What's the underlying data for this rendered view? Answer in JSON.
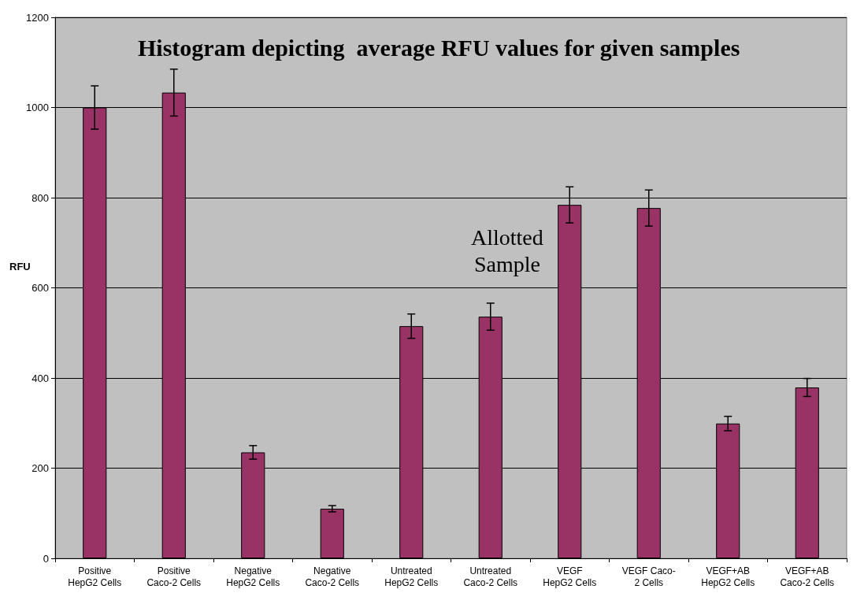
{
  "chart_data": {
    "type": "bar",
    "title": "Histogram depicting  average RFU values for given samples",
    "ylabel": "RFU",
    "categories": [
      "Positive\nHepG2 Cells",
      "Positive\nCaco-2 Cells",
      "Negative\nHepG2 Cells",
      "Negative\nCaco-2 Cells",
      "Untreated\nHepG2 Cells",
      "Untreated\nCaco-2 Cells",
      "VEGF\nHepG2 Cells",
      "VEGF Caco-\n2 Cells",
      "VEGF+AB\nHepG2 Cells",
      "VEGF+AB\nCaco-2 Cells"
    ],
    "values": [
      1000,
      1033,
      235,
      110,
      515,
      536,
      784,
      777,
      299,
      379
    ],
    "errors": [
      48,
      52,
      15,
      7,
      27,
      30,
      40,
      40,
      16,
      20
    ],
    "color": "#993366",
    "ylim": [
      0,
      1200
    ],
    "yticks": [
      0,
      200,
      400,
      600,
      800,
      1000,
      1200
    ],
    "grid": "y",
    "annotations": [
      "Allotted\nSample"
    ]
  }
}
